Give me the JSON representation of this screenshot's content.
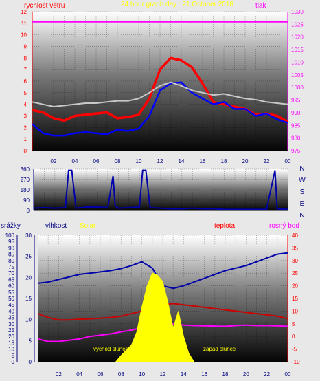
{
  "chart_data": [
    {
      "type": "line",
      "title": "24 hour graph day : 21 October 2018",
      "ylabel": "rychlost větru",
      "y2label": "tlak",
      "x_ticks": [
        "02",
        "04",
        "06",
        "08",
        "10",
        "12",
        "14",
        "16",
        "18",
        "20",
        "22",
        "00"
      ],
      "ylim": [
        0,
        12
      ],
      "y_ticks": [
        "0",
        "1",
        "2",
        "3",
        "4",
        "5",
        "6",
        "7",
        "8",
        "9",
        "10",
        "11",
        "12"
      ],
      "y2lim": [
        975,
        1030
      ],
      "y2_ticks": [
        "975",
        "980",
        "985",
        "990",
        "995",
        "1000",
        "1005",
        "1010",
        "1015",
        "1020",
        "1025",
        "1030"
      ],
      "grid": true,
      "series": [
        {
          "color": "#ff0000",
          "x": [
            0,
            1,
            2,
            3,
            4,
            5,
            6,
            7,
            8,
            9,
            10,
            11,
            12,
            13,
            14,
            15,
            16,
            17,
            18,
            19,
            20,
            21,
            22,
            23,
            24
          ],
          "values": [
            3.5,
            3.3,
            2.8,
            2.6,
            3.0,
            3.1,
            3.2,
            3.3,
            2.8,
            2.9,
            3.1,
            4.5,
            7.0,
            8.0,
            7.8,
            7.2,
            5.8,
            4.2,
            4.0,
            3.8,
            3.6,
            3.1,
            3.2,
            3.0,
            2.5
          ]
        },
        {
          "color": "#0000ff",
          "x": [
            0,
            1,
            2,
            3,
            4,
            5,
            6,
            7,
            8,
            9,
            10,
            11,
            12,
            13,
            14,
            15,
            16,
            17,
            18,
            19,
            20,
            21,
            22,
            23,
            24
          ],
          "values": [
            2.3,
            1.5,
            1.3,
            1.3,
            1.5,
            1.6,
            1.5,
            1.4,
            1.8,
            1.7,
            1.9,
            3.0,
            5.2,
            5.8,
            5.9,
            5.0,
            4.5,
            4.0,
            4.2,
            3.6,
            3.6,
            3.0,
            3.2,
            2.7,
            2.4
          ]
        },
        {
          "color": "#c8c8c8",
          "x": [
            0,
            1,
            2,
            3,
            4,
            5,
            6,
            7,
            8,
            9,
            10,
            11,
            12,
            13,
            14,
            15,
            16,
            17,
            18,
            19,
            20,
            21,
            22,
            23,
            24
          ],
          "values": [
            4.2,
            4.0,
            3.8,
            3.9,
            4.0,
            4.1,
            4.1,
            4.2,
            4.3,
            4.3,
            4.5,
            5.0,
            5.6,
            5.9,
            5.6,
            5.2,
            5.0,
            4.8,
            4.9,
            4.7,
            4.5,
            4.4,
            4.2,
            4.1,
            4.0
          ]
        },
        {
          "color": "#ff00ff",
          "axis": "y2",
          "x": [
            0,
            1,
            2,
            3,
            4,
            5,
            6,
            7,
            8,
            9,
            10,
            11,
            12,
            13,
            14,
            15,
            16,
            17,
            18,
            19,
            20,
            21,
            22,
            23,
            24
          ],
          "values": [
            1026,
            1026,
            1026,
            1026,
            1026,
            1026,
            1026,
            1026,
            1026,
            1026,
            1026,
            1026,
            1026,
            1026,
            1026,
            1026,
            1026,
            1026,
            1026,
            1026,
            1026,
            1026,
            1026,
            1026,
            1026
          ]
        }
      ]
    },
    {
      "type": "line",
      "ylim": [
        0,
        360
      ],
      "y_ticks": [
        "0",
        "90",
        "180",
        "270",
        "360"
      ],
      "right_labels": [
        "N",
        "W",
        "S",
        "E",
        "N"
      ],
      "grid": true,
      "series": [
        {
          "color": "#0000aa",
          "x": [
            0,
            1,
            2,
            3,
            3.3,
            3.6,
            4,
            5,
            6,
            7,
            7.5,
            7.7,
            8,
            9,
            10,
            10.3,
            10.6,
            11,
            12,
            13,
            14,
            15,
            16,
            17,
            18,
            19,
            20,
            21,
            22,
            22.8,
            23,
            24
          ],
          "values": [
            20,
            25,
            20,
            25,
            350,
            350,
            20,
            30,
            30,
            25,
            300,
            40,
            20,
            25,
            30,
            350,
            350,
            25,
            20,
            15,
            15,
            20,
            15,
            15,
            10,
            10,
            10,
            10,
            10,
            350,
            15,
            10
          ]
        }
      ]
    },
    {
      "type": "line",
      "x_ticks": [
        "02",
        "04",
        "06",
        "08",
        "10",
        "12",
        "14",
        "16",
        "18",
        "20",
        "22",
        "00"
      ],
      "y_left1_label": "srážky",
      "y_left1_lim": [
        0,
        100
      ],
      "y_left1_ticks": [
        "0",
        "5",
        "10",
        "15",
        "20",
        "25",
        "30",
        "35",
        "40",
        "45",
        "50",
        "55",
        "60",
        "65",
        "70",
        "75",
        "80",
        "85",
        "90",
        "95",
        "100"
      ],
      "y_left2_label": "vlhkost",
      "y_left2_lim": [
        0,
        30
      ],
      "y_left2_ticks": [
        "0",
        "5",
        "10",
        "15",
        "20",
        "25",
        "30"
      ],
      "legend_labels": {
        "solar": "Solar",
        "teplota": "teplota",
        "rosny_bod": "rosný bod"
      },
      "y2lim": [
        -10,
        40
      ],
      "y2_ticks": [
        "-10",
        "-5",
        "0",
        "5",
        "10",
        "15",
        "20",
        "25",
        "30",
        "35",
        "40"
      ],
      "annotations": {
        "sunrise": "východ slunce",
        "sunset": "západ slunce"
      },
      "grid": true,
      "series": [
        {
          "color": "#0000aa",
          "axis": "y2",
          "x": [
            0,
            1,
            2,
            3,
            4,
            5,
            6,
            7,
            8,
            9,
            10,
            11,
            12,
            13,
            14,
            15,
            16,
            17,
            18,
            19,
            20,
            21,
            22,
            23,
            24
          ],
          "values": [
            21,
            21.5,
            22.5,
            23.5,
            24.5,
            25,
            25.5,
            26,
            26.8,
            28,
            29.5,
            27,
            20,
            19,
            20,
            21.5,
            23,
            24.5,
            26,
            27,
            28,
            29.5,
            31,
            32.5,
            33
          ]
        },
        {
          "color": "#cc0000",
          "axis": "y2",
          "x": [
            0,
            1,
            2,
            3,
            4,
            5,
            6,
            7,
            8,
            9,
            10,
            11,
            12,
            13,
            14,
            15,
            16,
            17,
            18,
            19,
            20,
            21,
            22,
            23,
            24
          ],
          "values": [
            9,
            7.5,
            6.5,
            6.5,
            6.8,
            7,
            7.2,
            7.5,
            8,
            9,
            10,
            11.5,
            12.5,
            13,
            12.5,
            12,
            11.5,
            11,
            10.5,
            10,
            9.5,
            9,
            8.5,
            8,
            7
          ]
        },
        {
          "color": "#ff00ff",
          "axis": "y2",
          "x": [
            0,
            1,
            2,
            3,
            4,
            5,
            6,
            7,
            8,
            9,
            10,
            11,
            12,
            13,
            14,
            15,
            16,
            17,
            18,
            19,
            20,
            21,
            22,
            23,
            24
          ],
          "values": [
            -1,
            -2,
            -2,
            -1.5,
            -1,
            0,
            0.5,
            1,
            1.8,
            2.5,
            3.5,
            5,
            5.3,
            5,
            4.5,
            4.3,
            4.2,
            4.1,
            4,
            4.3,
            4.5,
            4.3,
            4.3,
            4.2,
            4
          ]
        },
        {
          "color": "#ffff00",
          "kind": "area",
          "axis": "y_left2",
          "x": [
            7.5,
            8,
            9,
            9.5,
            10,
            10.5,
            11,
            11.5,
            12,
            12.5,
            13,
            13.5,
            14,
            14.5,
            15
          ],
          "values": [
            0,
            1.5,
            4,
            7,
            13,
            18,
            21,
            20.5,
            19,
            14,
            8,
            12,
            6,
            2,
            0
          ]
        }
      ]
    }
  ]
}
